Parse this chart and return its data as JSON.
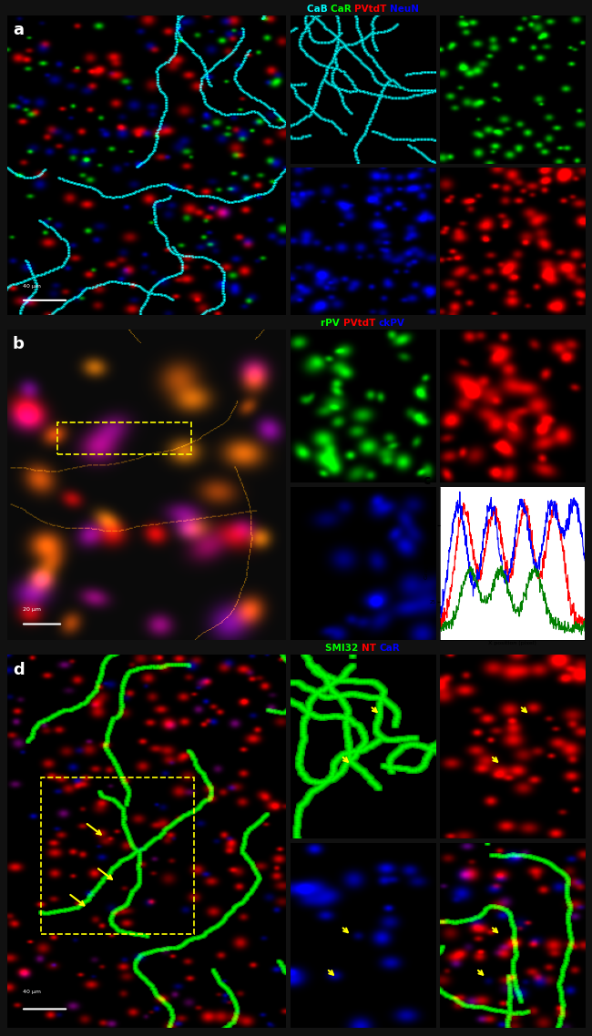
{
  "panel_a_title_parts": [
    {
      "text": "CaB ",
      "color": "#00FFFF"
    },
    {
      "text": "CaR ",
      "color": "#00FF00"
    },
    {
      "text": "PVtdT ",
      "color": "#FF0000"
    },
    {
      "text": "NeuN",
      "color": "#0000FF"
    }
  ],
  "panel_b_title_parts": [
    {
      "text": "rPV ",
      "color": "#00FF00"
    },
    {
      "text": "PVtdT ",
      "color": "#FF0000"
    },
    {
      "text": "ckPV",
      "color": "#0000FF"
    }
  ],
  "panel_d_title_parts": [
    {
      "text": "SMI32 ",
      "color": "#00FF00"
    },
    {
      "text": "NT ",
      "color": "#FF0000"
    },
    {
      "text": "CaR",
      "color": "#0000FF"
    }
  ],
  "bg": "#000000",
  "white": "#FFFFFF",
  "yellow": "#FFFF00"
}
